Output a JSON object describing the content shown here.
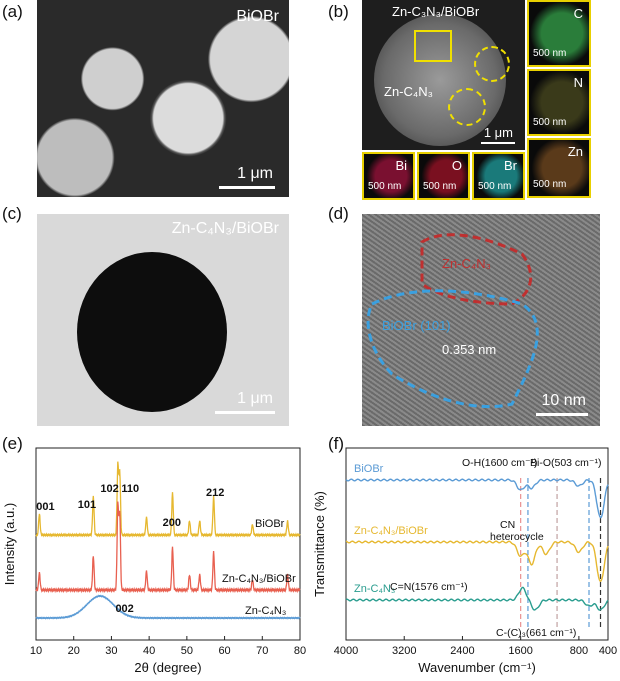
{
  "panels": {
    "a": {
      "label": "(a)",
      "title": "BiOBr",
      "scale": "1 μm"
    },
    "b": {
      "label": "(b)",
      "title": "Zn-C₃N₃/BiOBr",
      "arrow_label": "Zn-C₄N₃",
      "scale": "1 μm",
      "maps": [
        {
          "el": "C",
          "scale": "500 nm",
          "color": "#2a7d3a"
        },
        {
          "el": "N",
          "scale": "500 nm",
          "color": "#3a3a1a"
        },
        {
          "el": "Zn",
          "scale": "500 nm",
          "color": "#5a3a1a"
        },
        {
          "el": "Bi",
          "scale": "500 nm",
          "color": "#7a1030"
        },
        {
          "el": "O",
          "scale": "500 nm",
          "color": "#7a1020"
        },
        {
          "el": "Br",
          "scale": "500 nm",
          "color": "#1a7a7a"
        }
      ]
    },
    "c": {
      "label": "(c)",
      "title": "Zn-C₄N₃/BiOBr",
      "scale": "1 μm"
    },
    "d": {
      "label": "(d)",
      "region1": "Zn-C₄N₃",
      "region2": "BiOBr (101)",
      "spacing": "0.353 nm",
      "scale": "10 nm"
    },
    "e": {
      "label": "(e)"
    },
    "f": {
      "label": "(f)"
    }
  },
  "chart_data": [
    {
      "type": "line",
      "xlabel": "2θ (degree)",
      "ylabel": "Intensity (a.u.)",
      "xlim": [
        10,
        80
      ],
      "x_ticks": [
        10,
        20,
        30,
        40,
        50,
        60,
        70,
        80
      ],
      "series": [
        {
          "name": "BiOBr",
          "color": "#e6b830",
          "peaks": [
            [
              10.9,
              0.3
            ],
            [
              25.2,
              0.55
            ],
            [
              31.7,
              1.0
            ],
            [
              32.2,
              0.9
            ],
            [
              39.3,
              0.25
            ],
            [
              46.2,
              0.6
            ],
            [
              50.7,
              0.2
            ],
            [
              53.4,
              0.2
            ],
            [
              57.1,
              0.55
            ],
            [
              67.4,
              0.15
            ],
            [
              76.7,
              0.2
            ]
          ]
        },
        {
          "name": "Zn-C₄N₃/BiOBr",
          "color": "#e86050",
          "peaks": [
            [
              10.9,
              0.2
            ],
            [
              25.2,
              0.4
            ],
            [
              31.7,
              1.0
            ],
            [
              32.2,
              0.9
            ],
            [
              39.3,
              0.22
            ],
            [
              46.2,
              0.5
            ],
            [
              50.7,
              0.18
            ],
            [
              53.4,
              0.18
            ],
            [
              57.1,
              0.45
            ],
            [
              67.4,
              0.12
            ],
            [
              76.7,
              0.18
            ]
          ]
        },
        {
          "name": "Zn-C₄N₃",
          "color": "#5b9bd5",
          "broad_peak": 27.0
        }
      ],
      "peak_labels": [
        {
          "text": "001",
          "x": 12.5
        },
        {
          "text": "101",
          "x": 23.5
        },
        {
          "text": "102",
          "x": 29.5
        },
        {
          "text": "110",
          "x": 35.0
        },
        {
          "text": "200",
          "x": 46.0
        },
        {
          "text": "212",
          "x": 57.5
        },
        {
          "text": "002",
          "x": 33.5
        }
      ]
    },
    {
      "type": "line",
      "xlabel": "Wavenumber (cm⁻¹)",
      "ylabel": "Transmittance (%)",
      "xlim": [
        4000,
        400
      ],
      "x_ticks": [
        4000,
        3200,
        2400,
        1600,
        800,
        400
      ],
      "x_tick_labels": [
        "4000",
        "3200",
        "2400",
        "1600",
        "800",
        "400"
      ],
      "x_tick_positions": [
        4000,
        3200,
        2400,
        1600,
        800,
        400
      ],
      "series": [
        {
          "name": "BiOBr",
          "color": "#5b9bd5"
        },
        {
          "name": "Zn-C₄N₃/BiOBr",
          "color": "#e6b830"
        },
        {
          "name": "Zn-C₄N₃",
          "color": "#2a9d8f"
        }
      ],
      "annotations": [
        "O-H(1600 cm⁻¹)",
        "Bi-O(503 cm⁻¹)",
        "CN",
        "heterocycle",
        "C=N(1576 cm⁻¹)",
        "C-(C)₃(661 cm⁻¹)"
      ],
      "vlines": [
        {
          "x": 1600,
          "color": "#e89090"
        },
        {
          "x": 1500,
          "color": "#5b9bd5"
        },
        {
          "x": 1100,
          "color": "#c0a0a0"
        },
        {
          "x": 661,
          "color": "#5b9bd5"
        },
        {
          "x": 503,
          "color": "#333333"
        }
      ]
    }
  ]
}
